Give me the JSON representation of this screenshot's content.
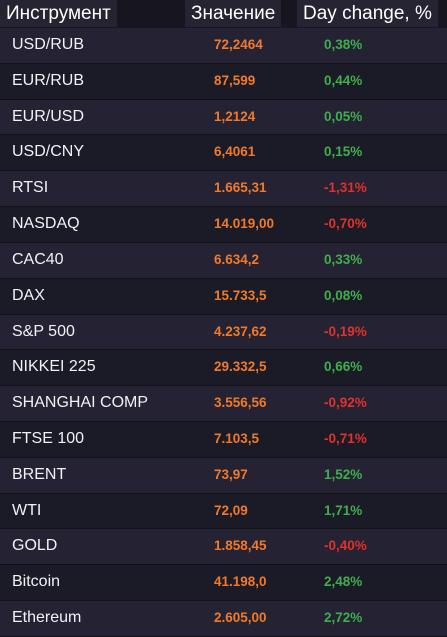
{
  "header": {
    "instrument": "Инструмент",
    "value": "Значение",
    "change": "Day change, %"
  },
  "colors": {
    "value": "#f07a2a",
    "positive": "#3fae4c",
    "negative": "#e0322c",
    "row_odd": "#242233",
    "row_even": "#1b1a27"
  },
  "rows": [
    {
      "name": "USD/RUB",
      "value": "72,2464",
      "change": "0,38%",
      "direction": "up"
    },
    {
      "name": "EUR/RUB",
      "value": "87,599",
      "change": "0,44%",
      "direction": "up"
    },
    {
      "name": "EUR/USD",
      "value": "1,2124",
      "change": "0,05%",
      "direction": "up"
    },
    {
      "name": "USD/CNY",
      "value": "6,4061",
      "change": "0,15%",
      "direction": "up"
    },
    {
      "name": "RTSI",
      "value": "1.665,31",
      "change": "-1,31%",
      "direction": "down"
    },
    {
      "name": "NASDAQ",
      "value": "14.019,00",
      "change": "-0,70%",
      "direction": "down"
    },
    {
      "name": "CAC40",
      "value": "6.634,2",
      "change": "0,33%",
      "direction": "up"
    },
    {
      "name": "DAX",
      "value": "15.733,5",
      "change": "0,08%",
      "direction": "up"
    },
    {
      "name": "S&P 500",
      "value": "4.237,62",
      "change": "-0,19%",
      "direction": "down"
    },
    {
      "name": "NIKKEI 225",
      "value": "29.332,5",
      "change": "0,66%",
      "direction": "up"
    },
    {
      "name": "SHANGHAI COMP",
      "value": "3.556,56",
      "change": "-0,92%",
      "direction": "down"
    },
    {
      "name": "FTSE 100",
      "value": "7.103,5",
      "change": "-0,71%",
      "direction": "down"
    },
    {
      "name": "BRENT",
      "value": "73,97",
      "change": "1,52%",
      "direction": "up"
    },
    {
      "name": "WTI",
      "value": "72,09",
      "change": "1,71%",
      "direction": "up"
    },
    {
      "name": "GOLD",
      "value": "1.858,45",
      "change": "-0,40%",
      "direction": "down"
    },
    {
      "name": "Bitcoin",
      "value": "41.198,0",
      "change": "2,48%",
      "direction": "up"
    },
    {
      "name": "Ethereum",
      "value": "2.605,00",
      "change": "2,72%",
      "direction": "up"
    }
  ]
}
